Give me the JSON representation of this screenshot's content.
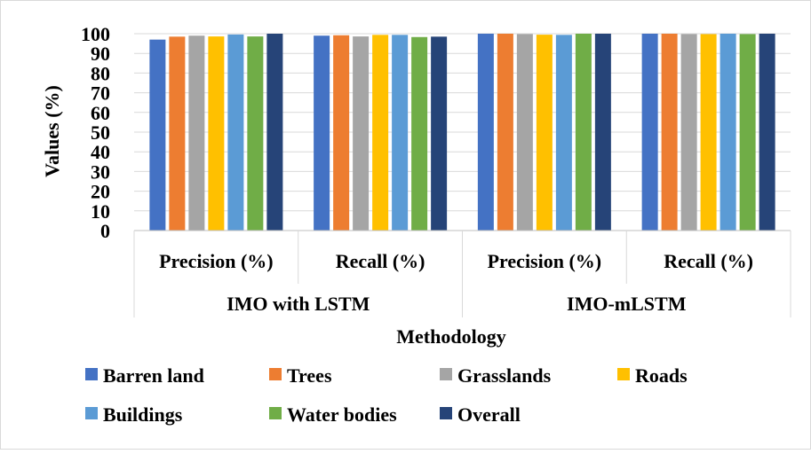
{
  "chart_data": {
    "type": "bar",
    "xlabel": "Methodology",
    "ylabel": "Values (%)",
    "ylim": [
      0,
      100
    ],
    "yticks": [
      0,
      10,
      20,
      30,
      40,
      50,
      60,
      70,
      80,
      90,
      100
    ],
    "grid": "horizontal",
    "legend_position": "bottom",
    "groups": [
      {
        "label": "IMO with LSTM",
        "categories": [
          "Precision (%)",
          "Recall (%)"
        ]
      },
      {
        "label": "IMO-mLSTM",
        "categories": [
          "Precision (%)",
          "Recall (%)"
        ]
      }
    ],
    "categories": [
      "Precision (%)",
      "Recall (%)",
      "Precision (%)",
      "Recall (%)"
    ],
    "series": [
      {
        "name": "Barren land",
        "color": "#4472C4",
        "values": [
          97.0,
          99.0,
          100.0,
          100.0
        ]
      },
      {
        "name": "Trees",
        "color": "#ED7D31",
        "values": [
          98.5,
          99.2,
          100.0,
          100.0
        ]
      },
      {
        "name": "Grasslands",
        "color": "#A5A5A5",
        "values": [
          99.0,
          98.6,
          99.8,
          99.8
        ]
      },
      {
        "name": "Roads",
        "color": "#FFC000",
        "values": [
          98.6,
          99.4,
          99.5,
          99.8
        ]
      },
      {
        "name": "Buildings",
        "color": "#5B9BD5",
        "values": [
          99.6,
          99.4,
          99.4,
          100.0
        ]
      },
      {
        "name": "Water bodies",
        "color": "#70AD47",
        "values": [
          98.6,
          98.3,
          100.0,
          99.8
        ]
      },
      {
        "name": "Overall",
        "color": "#264478",
        "values": [
          100.0,
          98.5,
          100.0,
          100.0
        ]
      }
    ]
  }
}
